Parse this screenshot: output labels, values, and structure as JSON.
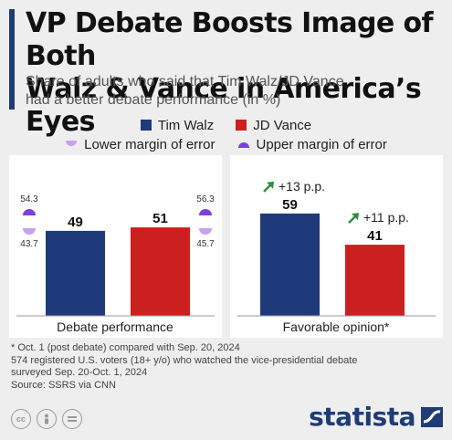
{
  "header": {
    "title_line1": "VP Debate Boosts Image of Both",
    "title_line2": "Walz & Vance in America’s Eyes",
    "subtitle_line1": "Share of adults who said that Tim Walz/JD Vance",
    "subtitle_line2": "had a better debate performance (in %)"
  },
  "legend": {
    "walz": "Tim Walz",
    "vance": "JD Vance",
    "lower": "Lower margin of error",
    "upper": "Upper margin of error"
  },
  "colors": {
    "walz": "#1f3a7a",
    "vance": "#cc1f1f",
    "lower_margin": "#c9a0f0",
    "upper_margin": "#7b3fe0",
    "arrow": "#2f8f3f",
    "brand": "#1f3c78"
  },
  "chart_data": [
    {
      "type": "bar",
      "categories": [
        "Debate performance"
      ],
      "series": [
        {
          "name": "Tim Walz",
          "values": [
            49
          ],
          "lower_margin": 43.7,
          "upper_margin": 54.3
        },
        {
          "name": "JD Vance",
          "values": [
            51
          ],
          "lower_margin": 45.7,
          "upper_margin": 56.3
        }
      ],
      "ylim": [
        0,
        70
      ]
    },
    {
      "type": "bar",
      "categories": [
        "Favorable opinion*"
      ],
      "series": [
        {
          "name": "Tim Walz",
          "values": [
            59
          ],
          "change": "+13 p.p."
        },
        {
          "name": "JD Vance",
          "values": [
            41
          ],
          "change": "+11 p.p."
        }
      ],
      "ylim": [
        0,
        70
      ]
    }
  ],
  "footnotes": {
    "line1": "* Oct. 1 (post debate) compared with Sep. 20, 2024",
    "line2": "574 registered U.S. voters (18+ y/o) who watched the vice-presidential debate",
    "line3": "surveyed Sep. 20-Oct. 1, 2024",
    "source": "Source: SSRS via CNN"
  },
  "brand": {
    "name": "statista",
    "icons": [
      "cc-icon",
      "person-icon",
      "equals-icon"
    ]
  }
}
